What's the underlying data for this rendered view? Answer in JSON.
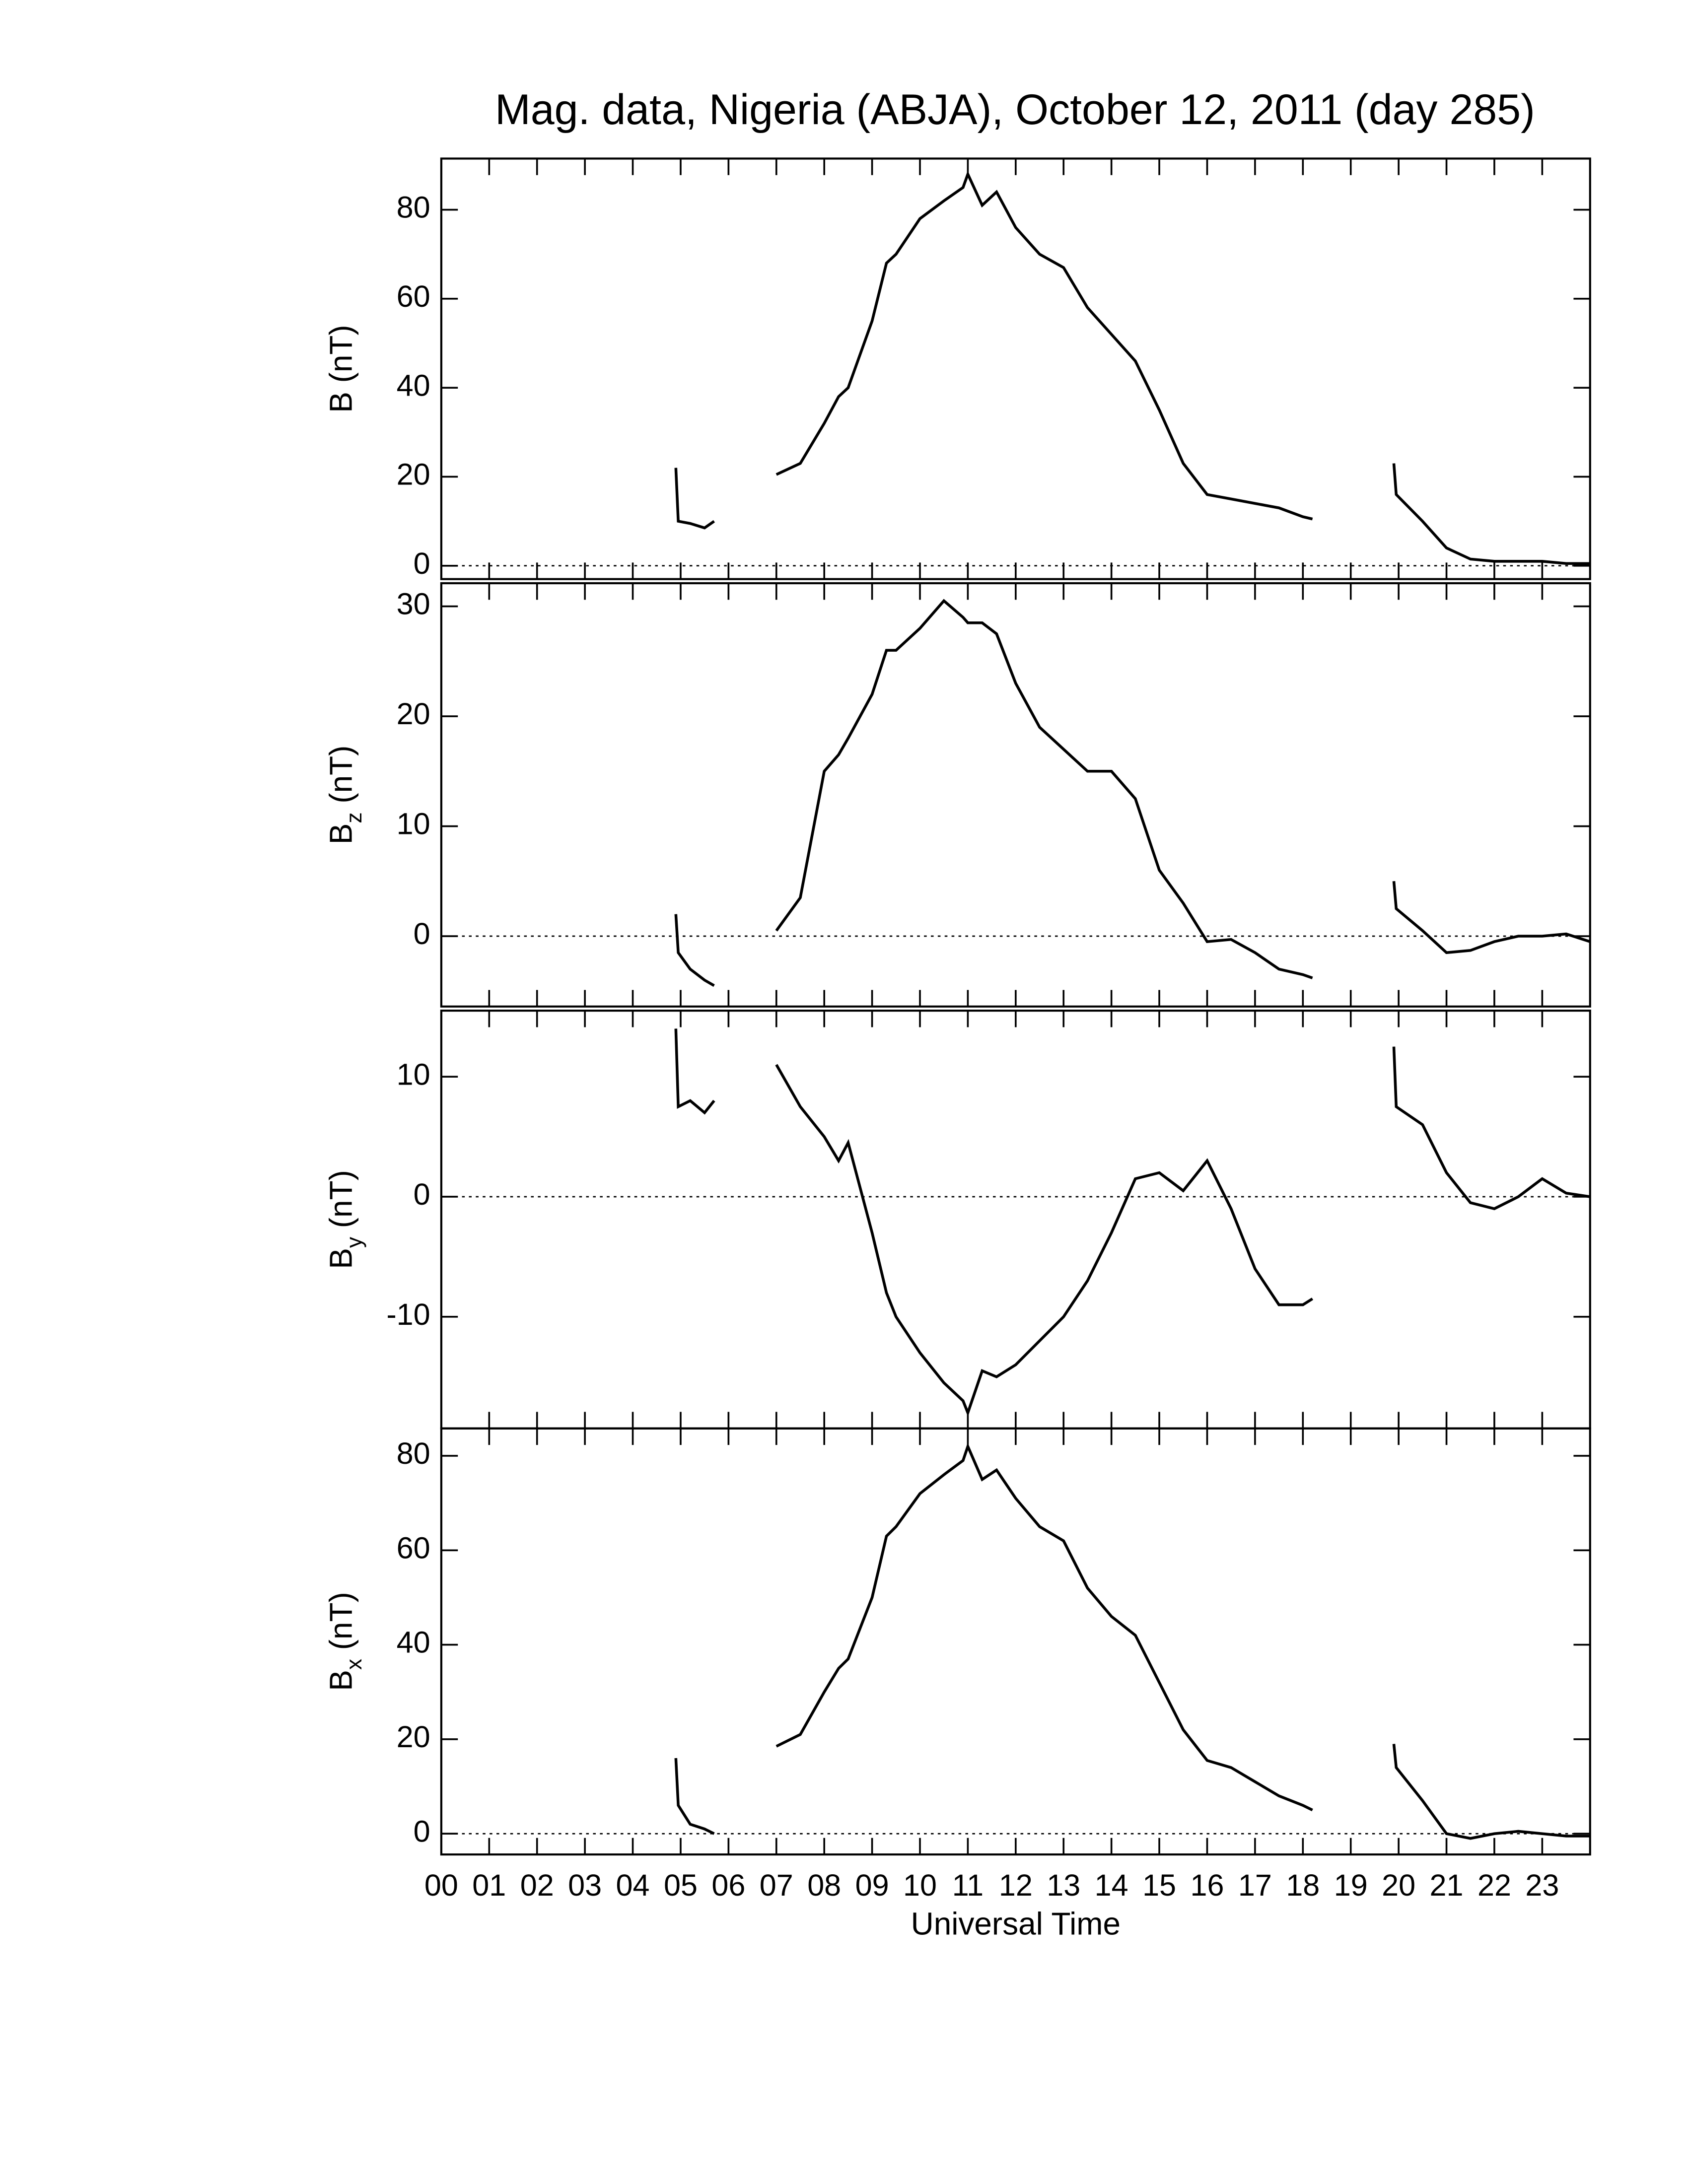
{
  "chart_data": [
    {
      "type": "line",
      "title": "Mag. data, Nigeria (ABJA), October 12, 2011 (day 285)",
      "ylabel_parts": [
        "B (nT)"
      ],
      "x": [
        4.9,
        4.95,
        5.2,
        5.5,
        5.7,
        6.3,
        7.0,
        7.5,
        8.0,
        8.3,
        8.5,
        9.0,
        9.3,
        9.5,
        10.0,
        10.5,
        10.9,
        11.0,
        11.3,
        11.6,
        12.0,
        12.5,
        13.0,
        13.5,
        14.0,
        14.5,
        15.0,
        15.5,
        16.0,
        16.5,
        17.0,
        17.5,
        18.0,
        18.2,
        19.0,
        19.9,
        19.95,
        20.5,
        21.0,
        21.5,
        22.0,
        22.5,
        23.0,
        23.5,
        24.0
      ],
      "values": [
        22,
        10,
        9.5,
        8.5,
        10,
        null,
        20.5,
        23,
        32,
        38,
        40,
        55,
        68,
        70,
        78,
        82,
        85,
        88,
        81,
        84,
        76,
        70,
        67,
        58,
        52,
        46,
        35,
        23,
        16,
        15,
        14,
        13,
        11,
        10.5,
        null,
        23,
        16,
        10,
        4,
        1.5,
        1,
        1,
        1,
        0.5,
        0.5
      ],
      "color": "#000000",
      "zero_line": true,
      "xlim": [
        0,
        24
      ],
      "ylim": [
        -3,
        91.5
      ],
      "yticks": [
        0,
        20,
        40,
        60,
        80
      ]
    },
    {
      "type": "line",
      "ylabel_parts": [
        "B",
        "z",
        " (nT)"
      ],
      "x": [
        4.9,
        4.95,
        5.2,
        5.5,
        5.7,
        6.3,
        7.0,
        7.5,
        8.0,
        8.3,
        8.5,
        9.0,
        9.3,
        9.5,
        10.0,
        10.5,
        10.9,
        11.0,
        11.3,
        11.6,
        12.0,
        12.5,
        13.0,
        13.5,
        14.0,
        14.5,
        15.0,
        15.5,
        16.0,
        16.5,
        17.0,
        17.5,
        18.0,
        18.2,
        19.0,
        19.9,
        19.95,
        20.5,
        21.0,
        21.5,
        22.0,
        22.5,
        23.0,
        23.5,
        24.0
      ],
      "values": [
        2,
        -1.5,
        -3,
        -4,
        -4.5,
        null,
        0.5,
        3.5,
        15,
        16.5,
        18,
        22,
        26,
        26,
        28,
        30.5,
        29,
        28.5,
        28.5,
        27.5,
        23,
        19,
        17,
        15,
        15,
        12.5,
        6,
        3,
        -0.5,
        -0.3,
        -1.5,
        -3,
        -3.5,
        -3.8,
        null,
        5,
        2.5,
        0.5,
        -1.5,
        -1.3,
        -0.5,
        0,
        0,
        0.2,
        -0.5
      ],
      "color": "#000000",
      "zero_line": true,
      "xlim": [
        0,
        24
      ],
      "ylim": [
        -6.4,
        32.1
      ],
      "yticks": [
        0,
        10,
        20,
        30
      ]
    },
    {
      "type": "line",
      "ylabel_parts": [
        "B",
        "y",
        " (nT)"
      ],
      "x": [
        4.9,
        4.95,
        5.2,
        5.5,
        5.7,
        6.3,
        7.0,
        7.5,
        8.0,
        8.3,
        8.5,
        9.0,
        9.3,
        9.5,
        10.0,
        10.5,
        10.9,
        11.0,
        11.3,
        11.6,
        12.0,
        12.5,
        13.0,
        13.5,
        14.0,
        14.5,
        15.0,
        15.5,
        16.0,
        16.5,
        17.0,
        17.5,
        18.0,
        18.2,
        19.0,
        19.9,
        19.95,
        20.5,
        21.0,
        21.5,
        22.0,
        22.5,
        23.0,
        23.5,
        24.0
      ],
      "values": [
        14,
        7.5,
        8,
        7,
        8,
        null,
        11,
        7.5,
        5,
        3,
        4.5,
        -3,
        -8,
        -10,
        -13,
        -15.5,
        -17,
        -18,
        -14.5,
        -15,
        -14,
        -12,
        -10,
        -7,
        -3,
        1.5,
        2,
        0.5,
        3,
        -1,
        -6,
        -9,
        -9,
        -8.5,
        null,
        12.5,
        7.5,
        6,
        2,
        -0.5,
        -1,
        0,
        1.5,
        0.3,
        0
      ],
      "color": "#000000",
      "zero_line": true,
      "xlim": [
        0,
        24
      ],
      "ylim": [
        -19.3,
        15.5
      ],
      "yticks": [
        -10,
        0,
        10
      ]
    },
    {
      "type": "line",
      "ylabel_parts": [
        "B",
        "x",
        " (nT)"
      ],
      "xlabel": "Universal Time",
      "x": [
        4.9,
        4.95,
        5.2,
        5.5,
        5.7,
        6.3,
        7.0,
        7.5,
        8.0,
        8.3,
        8.5,
        9.0,
        9.3,
        9.5,
        10.0,
        10.5,
        10.9,
        11.0,
        11.3,
        11.6,
        12.0,
        12.5,
        13.0,
        13.5,
        14.0,
        14.5,
        15.0,
        15.5,
        16.0,
        16.5,
        17.0,
        17.5,
        18.0,
        18.2,
        19.0,
        19.9,
        19.95,
        20.5,
        21.0,
        21.5,
        22.0,
        22.5,
        23.0,
        23.5,
        24.0
      ],
      "values": [
        16,
        6,
        2,
        1,
        0,
        null,
        18.5,
        21,
        30,
        35,
        37,
        50,
        63,
        65,
        72,
        76,
        79,
        82,
        75,
        77,
        71,
        65,
        62,
        52,
        46,
        42,
        32,
        22,
        15.5,
        14,
        11,
        8,
        6,
        5,
        null,
        19,
        14,
        7,
        0,
        -1,
        0,
        0.5,
        0,
        -0.5,
        -0.5
      ],
      "color": "#000000",
      "zero_line": true,
      "xlim": [
        0,
        24
      ],
      "ylim": [
        -4.4,
        85.8
      ],
      "yticks": [
        0,
        20,
        40,
        60,
        80
      ],
      "xticks": [
        {
          "value": 0,
          "label": "00"
        },
        {
          "value": 1,
          "label": "01"
        },
        {
          "value": 2,
          "label": "02"
        },
        {
          "value": 3,
          "label": "03"
        },
        {
          "value": 4,
          "label": "04"
        },
        {
          "value": 5,
          "label": "05"
        },
        {
          "value": 6,
          "label": "06"
        },
        {
          "value": 7,
          "label": "07"
        },
        {
          "value": 8,
          "label": "08"
        },
        {
          "value": 9,
          "label": "09"
        },
        {
          "value": 10,
          "label": "10"
        },
        {
          "value": 11,
          "label": "11"
        },
        {
          "value": 12,
          "label": "12"
        },
        {
          "value": 13,
          "label": "13"
        },
        {
          "value": 14,
          "label": "14"
        },
        {
          "value": 15,
          "label": "15"
        },
        {
          "value": 16,
          "label": "16"
        },
        {
          "value": 17,
          "label": "17"
        },
        {
          "value": 18,
          "label": "18"
        },
        {
          "value": 19,
          "label": "19"
        },
        {
          "value": 20,
          "label": "20"
        },
        {
          "value": 21,
          "label": "21"
        },
        {
          "value": 22,
          "label": "22"
        },
        {
          "value": 23,
          "label": "23"
        }
      ]
    }
  ]
}
